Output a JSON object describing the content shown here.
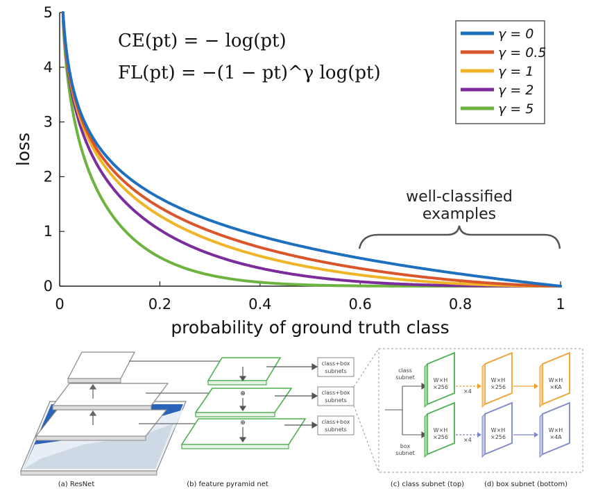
{
  "chart_data": {
    "type": "line",
    "xlabel": "probability of ground truth class",
    "ylabel": "loss",
    "xlim": [
      0,
      1
    ],
    "ylim": [
      0,
      5
    ],
    "xticks": [
      "0",
      "0.2",
      "0.4",
      "0.6",
      "0.8",
      "1"
    ],
    "yticks": [
      "0",
      "1",
      "2",
      "3",
      "4",
      "5"
    ],
    "legend_placement": "top-right",
    "grid": false,
    "formula_ce": "CE(pt) = − log(pt)",
    "formula_fl": "FL(pt) = −(1 − pt)^γ log(pt)",
    "x": [
      0.01,
      0.02,
      0.05,
      0.1,
      0.2,
      0.3,
      0.4,
      0.5,
      0.6,
      0.7,
      0.8,
      0.9,
      1.0
    ],
    "series": [
      {
        "name": "γ = 0",
        "color": "#1f6fbf",
        "gamma": 0,
        "values": [
          4.61,
          3.91,
          3.0,
          2.3,
          1.61,
          1.2,
          0.92,
          0.69,
          0.51,
          0.36,
          0.22,
          0.11,
          0
        ]
      },
      {
        "name": "γ = 0.5",
        "color": "#d9552a",
        "gamma": 0.5,
        "values": [
          4.58,
          3.87,
          2.92,
          2.18,
          1.44,
          1.01,
          0.71,
          0.49,
          0.32,
          0.19,
          0.1,
          0.03,
          0
        ]
      },
      {
        "name": "γ = 1",
        "color": "#f0b429",
        "gamma": 1,
        "values": [
          4.56,
          3.83,
          2.85,
          2.07,
          1.29,
          0.84,
          0.55,
          0.35,
          0.2,
          0.11,
          0.04,
          0.01,
          0
        ]
      },
      {
        "name": "γ = 2",
        "color": "#7b2d9b",
        "gamma": 2,
        "values": [
          4.52,
          3.76,
          2.71,
          1.87,
          1.03,
          0.59,
          0.33,
          0.17,
          0.08,
          0.03,
          0.01,
          0.0,
          0
        ]
      },
      {
        "name": "γ = 5",
        "color": "#6db33f",
        "gamma": 5,
        "values": [
          4.38,
          3.54,
          2.32,
          1.36,
          0.53,
          0.2,
          0.07,
          0.02,
          0.01,
          0.0,
          0.0,
          0.0,
          0
        ]
      }
    ],
    "annotation": {
      "line1": "well-classified",
      "line2": "examples"
    }
  },
  "diagram": {
    "caption_a": "(a) ResNet",
    "caption_b": "(b) feature pyramid net",
    "caption_c": "(c) class subnet (top)",
    "caption_d": "(d) box subnet (bottom)",
    "subnet_box": [
      "class+box",
      "subnets"
    ],
    "class_subnet_label": [
      "class",
      "subnet"
    ],
    "box_subnet_label": [
      "box",
      "subnet"
    ],
    "block_wh": "W×H",
    "block_256": "×256",
    "block_ka": "×KA",
    "block_4a": "×4A",
    "times4": "×4",
    "plus": "⊕",
    "colors": {
      "green": "#4caf50",
      "orange": "#f0a030",
      "blue": "#7e86c9",
      "gray": "#888888"
    }
  }
}
